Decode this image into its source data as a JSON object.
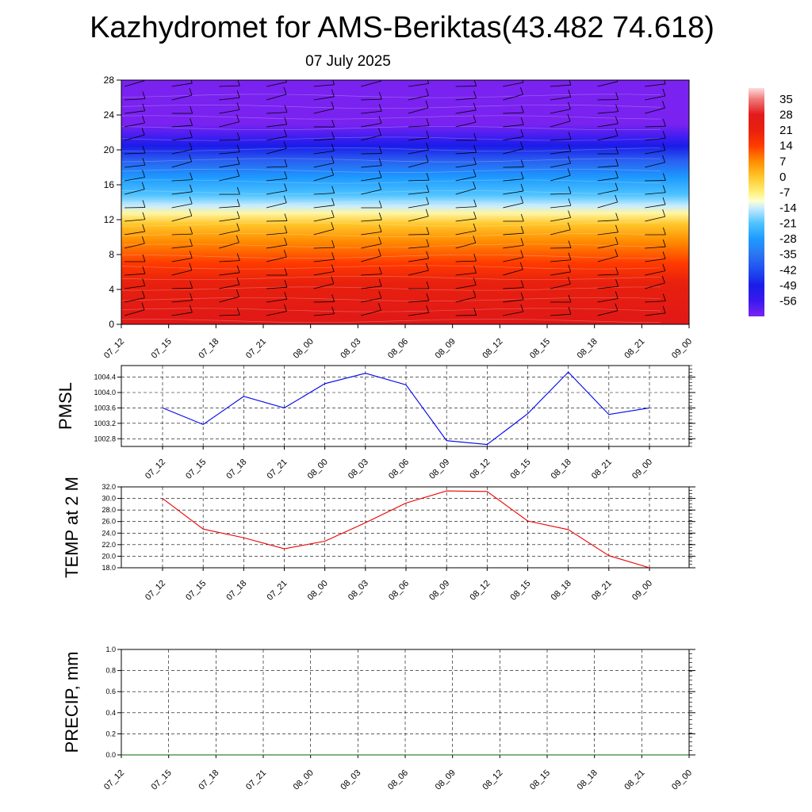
{
  "title": "Kazhydromet for AMS-Beriktas(43.482 74.618)",
  "subtitle": "07 July 2025",
  "time_labels": [
    "07_12",
    "07_15",
    "07_18",
    "07_21",
    "08_00",
    "08_03",
    "08_06",
    "08_09",
    "08_12",
    "08_15",
    "08_18",
    "08_21",
    "09_00"
  ],
  "chart_data": [
    {
      "type": "heatmap",
      "name": "vertical-profile",
      "y_ticks": [
        0,
        4,
        8,
        12,
        16,
        20,
        24,
        28
      ],
      "ylim": [
        0,
        28
      ],
      "colorbar_labels": [
        "35",
        "28",
        "21",
        "14",
        "7",
        "0",
        "-7",
        "-14",
        "-21",
        "-28",
        "-35",
        "-42",
        "-49",
        "-56"
      ],
      "colorbar_range": [
        -63,
        40
      ],
      "colorbar_stops": [
        {
          "v": 40,
          "c": "#fcdcdc"
        },
        {
          "v": 35,
          "c": "#f07a7a"
        },
        {
          "v": 28,
          "c": "#e31a1a"
        },
        {
          "v": 21,
          "c": "#e8200e"
        },
        {
          "v": 14,
          "c": "#ff3b00"
        },
        {
          "v": 7,
          "c": "#ff8c00"
        },
        {
          "v": 0,
          "c": "#ffc62a"
        },
        {
          "v": -7,
          "c": "#fff07a"
        },
        {
          "v": -11,
          "c": "#ffffd0"
        },
        {
          "v": -14,
          "c": "#c8ecff"
        },
        {
          "v": -21,
          "c": "#4fc3ff"
        },
        {
          "v": -28,
          "c": "#1e9bff"
        },
        {
          "v": -35,
          "c": "#2b76f0"
        },
        {
          "v": -42,
          "c": "#1f4ef0"
        },
        {
          "v": -49,
          "c": "#1a1de6"
        },
        {
          "v": -56,
          "c": "#3b18f0"
        },
        {
          "v": -63,
          "c": "#7a25f0"
        }
      ]
    },
    {
      "type": "line",
      "ylabel": "PMSL",
      "y_ticks": [
        "1002.8",
        "1003.2",
        "1003.6",
        "1004.0",
        "1004.4"
      ],
      "ylim": [
        1002.6,
        1004.7
      ],
      "color": "#0000ee",
      "values": [
        1003.6,
        1003.17,
        1003.9,
        1003.6,
        1004.23,
        1004.5,
        1004.2,
        1002.75,
        1002.65,
        1003.45,
        1004.53,
        1003.43,
        1003.6
      ]
    },
    {
      "type": "line",
      "ylabel": "TEMP at 2 M",
      "y_ticks": [
        "18.0",
        "20.0",
        "22.0",
        "24.0",
        "26.0",
        "28.0",
        "30.0",
        "32.0"
      ],
      "ylim": [
        18,
        32
      ],
      "color": "#ee0000",
      "values": [
        30.0,
        24.7,
        23.2,
        21.3,
        22.6,
        25.8,
        29.2,
        31.3,
        31.2,
        26.1,
        24.6,
        20.1,
        18.0
      ]
    },
    {
      "type": "line",
      "ylabel": "PRECIP, mm",
      "y_ticks": [
        "0.0",
        "0.2",
        "0.4",
        "0.6",
        "0.8",
        "1.0"
      ],
      "ylim": [
        0,
        1
      ],
      "color": "#006400",
      "values": [
        0,
        0,
        0,
        0,
        0,
        0,
        0,
        0,
        0,
        0,
        0,
        0,
        0
      ]
    }
  ]
}
